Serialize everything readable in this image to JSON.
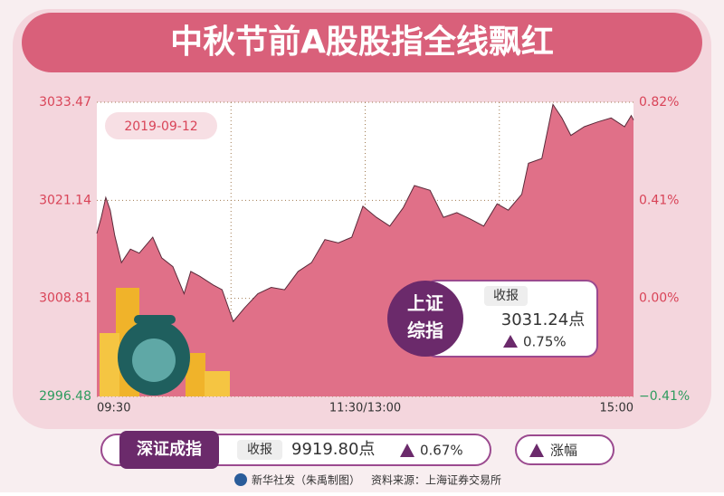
{
  "header": {
    "title": "中秋节前A股股指全线飘红"
  },
  "chart_data": {
    "type": "area",
    "date": "2019-09-12",
    "x": [
      0,
      2,
      4,
      6,
      8,
      11,
      15,
      19,
      25,
      29,
      34,
      39,
      42,
      46,
      52,
      56,
      61,
      66,
      72,
      78,
      84,
      90,
      96,
      102,
      108,
      114,
      119,
      125,
      131,
      137,
      142,
      149,
      155,
      161,
      167,
      173,
      179,
      184,
      190,
      193,
      199,
      204,
      208,
      212,
      218,
      224,
      230,
      236,
      239,
      240
    ],
    "values": [
      3016.97,
      3019.0,
      3021.5,
      3019.9,
      3016.7,
      3013.3,
      3015.0,
      3014.5,
      3016.5,
      3013.9,
      3012.8,
      3009.4,
      3012.2,
      3011.6,
      3010.5,
      3009.9,
      3005.9,
      3007.6,
      3009.4,
      3010.2,
      3009.9,
      3012.2,
      3013.3,
      3016.2,
      3015.8,
      3016.5,
      3020.4,
      3019.0,
      3017.9,
      3020.2,
      3023.0,
      3022.4,
      3019.0,
      3019.6,
      3018.8,
      3017.9,
      3020.7,
      3019.9,
      3021.9,
      3025.8,
      3026.4,
      3033.2,
      3031.5,
      3029.3,
      3030.4,
      3031.0,
      3031.5,
      3030.4,
      3031.8,
      3031.24
    ],
    "color": "#e07088",
    "xlim": [
      0,
      240
    ],
    "xticks": [
      {
        "value": 0,
        "label": "09:30"
      },
      {
        "value": 120,
        "label": "11:30/13:00"
      },
      {
        "value": 240,
        "label": "15:00"
      }
    ],
    "ylim": [
      2996.48,
      3033.47
    ],
    "yticks": [
      3033.47,
      3021.14,
      3008.81,
      2996.48
    ],
    "y2lim": [
      -0.41,
      0.82
    ],
    "y2ticks": [
      {
        "value": 0.82,
        "label": "0.82%"
      },
      {
        "value": 0.41,
        "label": "0.41%"
      },
      {
        "value": 0,
        "label": "0.00%"
      },
      {
        "value": -0.41,
        "label": "−0.41%"
      }
    ],
    "up_color": "#d94458",
    "down_color": "#2e9b5e",
    "grid": true
  },
  "sh_card": {
    "name": "上证综指",
    "close_label": "收报",
    "close": "3031.24点",
    "change": "0.75%"
  },
  "sz_card": {
    "name": "深证成指",
    "close_label": "收报",
    "close": "9919.80点",
    "change": "0.67%"
  },
  "legend": {
    "label": "涨幅"
  },
  "footer": {
    "credit": "新华社发（朱禹制图）",
    "source": "资料来源：上海证券交易所"
  }
}
